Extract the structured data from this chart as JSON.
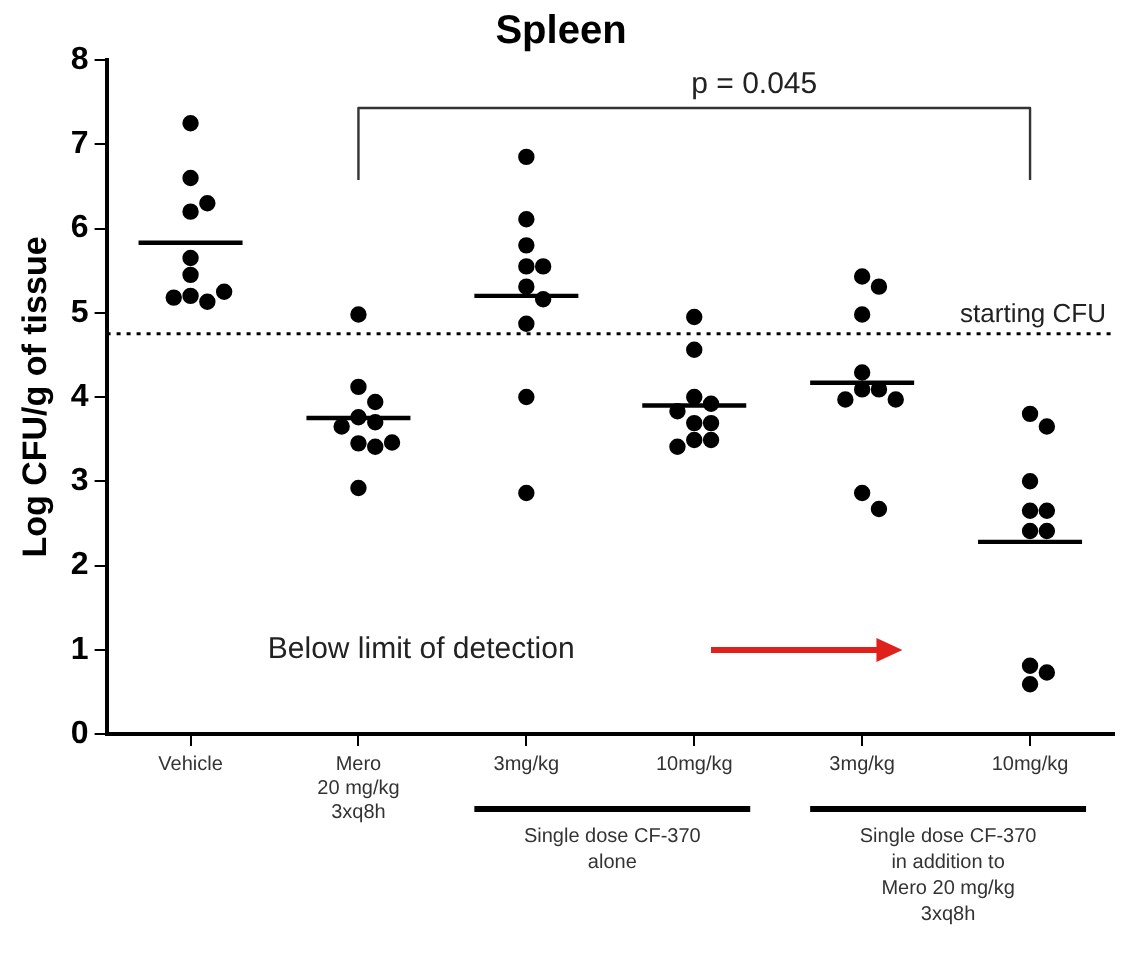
{
  "chart_data": {
    "type": "scatter",
    "title": "Spleen",
    "ylabel": "Log CFU/g of tissue",
    "categories": [
      "Vehicle",
      "Mero\n20 mg/kg\n3xq8h",
      "3mg/kg",
      "10mg/kg",
      "3mg/kg",
      "10mg/kg"
    ],
    "ylim": [
      0,
      8
    ],
    "yticks": [
      0,
      1,
      2,
      3,
      4,
      5,
      6,
      7,
      8
    ],
    "grid": false,
    "legend": false,
    "marker": "circle",
    "series": [
      {
        "color": "#000000",
        "values": [
          7.25,
          4.98,
          6.85,
          4.95,
          5.43,
          3.8
        ]
      },
      {
        "color": "#000000",
        "values": [
          6.6,
          4.12,
          6.11,
          4.56,
          5.31,
          3.65
        ]
      },
      {
        "color": "#000000",
        "values": [
          6.2,
          3.94,
          5.8,
          4.0,
          4.98,
          3.0
        ]
      },
      {
        "color": "#000000",
        "values": [
          6.3,
          3.76,
          5.55,
          3.92,
          4.29,
          2.65
        ]
      },
      {
        "color": "#000000",
        "values": [
          5.65,
          3.7,
          5.55,
          3.83,
          4.09,
          2.65
        ]
      },
      {
        "color": "#000000",
        "values": [
          5.45,
          3.65,
          5.31,
          3.69,
          4.09,
          2.41
        ]
      },
      {
        "color": "#000000",
        "values": [
          5.2,
          3.45,
          5.16,
          3.69,
          3.97,
          2.41
        ]
      },
      {
        "color": "#000000",
        "values": [
          5.13,
          3.41,
          4.87,
          3.49,
          3.97,
          0.81
        ]
      },
      {
        "color": "#000000",
        "values": [
          5.18,
          3.46,
          4.0,
          3.49,
          2.86,
          0.73
        ]
      },
      {
        "color": "#000000",
        "values": [
          5.25,
          2.92,
          2.86,
          3.41,
          2.67,
          0.59
        ]
      },
      {
        "type": "box",
        "color": "#000000",
        "boxes": [
          {
            "low": 5.83,
            "q1": 5.83,
            "median": 5.83,
            "q3": 5.83,
            "high": 5.83
          },
          {
            "low": 3.75,
            "q1": 3.75,
            "median": 3.75,
            "q3": 3.75,
            "high": 3.75
          },
          {
            "low": 5.2,
            "q1": 5.2,
            "median": 5.2,
            "q3": 5.2,
            "high": 5.2
          },
          {
            "low": 3.9,
            "q1": 3.9,
            "median": 3.9,
            "q3": 3.9,
            "high": 3.9
          },
          {
            "low": 4.17,
            "q1": 4.17,
            "median": 4.17,
            "q3": 4.17,
            "high": 4.17
          },
          {
            "low": 2.28,
            "q1": 2.28,
            "median": 2.28,
            "q3": 2.28,
            "high": 2.28
          }
        ]
      }
    ],
    "ref_lines": [
      {
        "axis": "y",
        "value": 4.75,
        "label": "starting CFU",
        "line_style": "dotted",
        "color": "#000000"
      }
    ],
    "annotations": [
      "p = 0.045",
      "Below limit of detection",
      "Single dose CF-370\nalone",
      "Single dose CF-370\nin addition to\nMero 20 mg/kg\n3xq8h"
    ]
  }
}
